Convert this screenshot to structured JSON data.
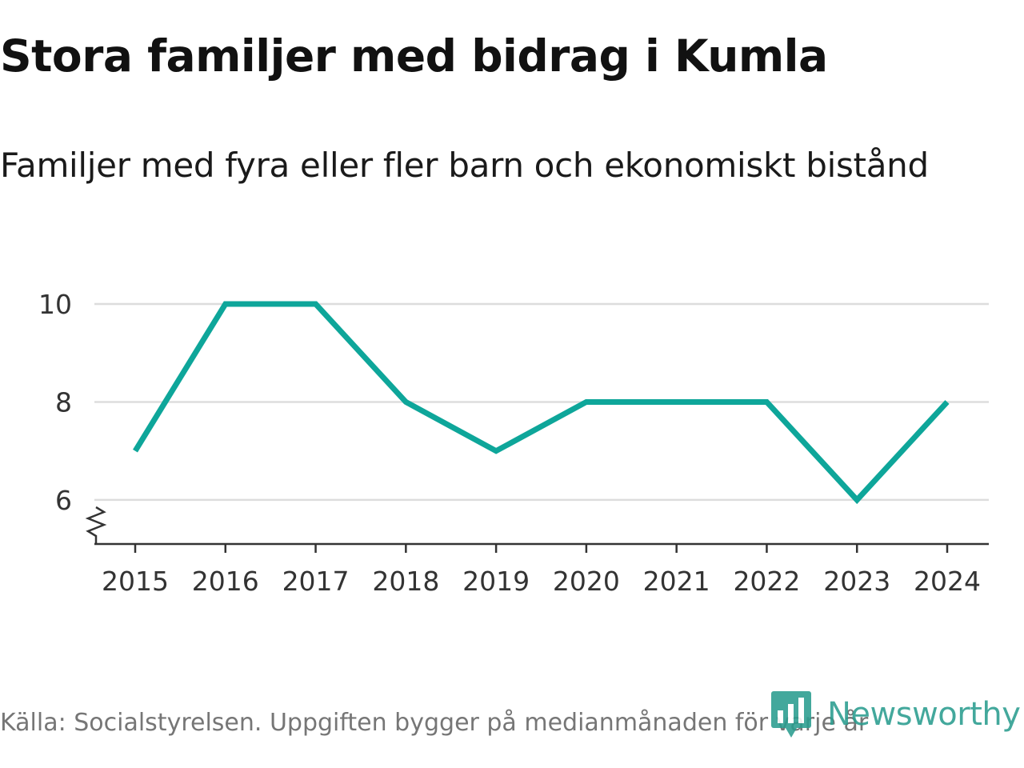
{
  "header": {
    "title": "Stora familjer med bidrag i Kumla",
    "subtitle": "Familjer med fyra eller fler barn och ekonomiskt bistånd"
  },
  "footer": {
    "source": "Källa: Socialstyrelsen. Uppgiften bygger på medianmånaden för varje år",
    "logo_text": "Newsworthy",
    "logo_icon": "bar-chart-icon"
  },
  "colors": {
    "line": "#0ea69a",
    "grid": "#dddddd",
    "axis": "#333333",
    "logo": "#2a9d8f"
  },
  "chart_data": {
    "type": "line",
    "title": "Stora familjer med bidrag i Kumla",
    "subtitle": "Familjer med fyra eller fler barn och ekonomiskt bistånd",
    "xlabel": "",
    "ylabel": "",
    "x": [
      "2015",
      "2016",
      "2017",
      "2018",
      "2019",
      "2020",
      "2021",
      "2022",
      "2023",
      "2024"
    ],
    "series": [
      {
        "name": "Familjer med fyra eller fler barn och ekonomiskt bistånd",
        "values": [
          7,
          10,
          10,
          8,
          7,
          8,
          8,
          8,
          6,
          8
        ]
      }
    ],
    "yticks": [
      6,
      8,
      10
    ],
    "ylim": [
      5.1,
      10
    ],
    "axis_break": true,
    "grid": true,
    "legend": "none"
  }
}
